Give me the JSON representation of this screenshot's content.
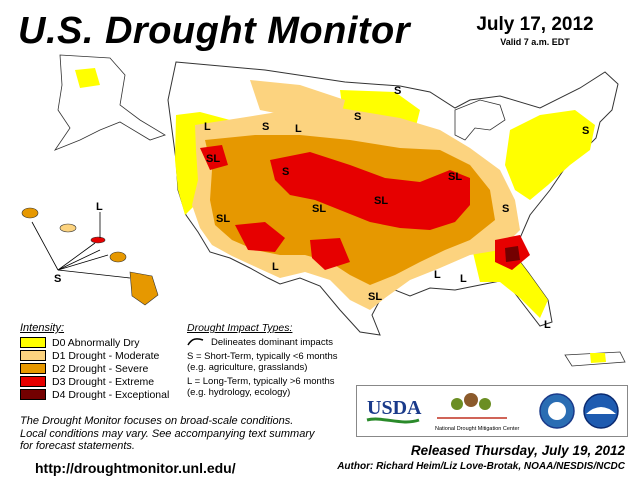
{
  "header": {
    "title": "U.S. Drought Monitor",
    "date": "July 17, 2012",
    "valid": "Valid 7 a.m. EDT"
  },
  "legend": {
    "title": "Intensity:",
    "items": [
      {
        "label": "D0 Abnormally Dry",
        "color": "#ffff00"
      },
      {
        "label": "D1 Drought - Moderate",
        "color": "#fcd37f"
      },
      {
        "label": "D2 Drought - Severe",
        "color": "#e69800"
      },
      {
        "label": "D3 Drought - Extreme",
        "color": "#e60000"
      },
      {
        "label": "D4 Drought - Exceptional",
        "color": "#730000"
      }
    ]
  },
  "impact": {
    "title": "Drought Impact Types:",
    "delineates": "Delineates dominant impacts",
    "short_term_1": "S = Short-Term, typically <6 months",
    "short_term_2": "(e.g. agriculture, grasslands)",
    "long_term_1": "L = Long-Term, typically >6 months",
    "long_term_2": "(e.g. hydrology, ecology)"
  },
  "disclaimer": {
    "line1": "The Drought Monitor focuses on broad-scale conditions.",
    "line2": "Local conditions may vary. See accompanying text summary",
    "line3": "for forecast statements."
  },
  "footer": {
    "url": "http://droughtmonitor.unl.edu/",
    "released": "Released Thursday, July 19, 2012",
    "author": "Author: Richard Heim/Liz Love-Brotak, NOAA/NESDIS/NCDC"
  },
  "logos": {
    "usda": "USDA",
    "ndmc": "National Drought Mitigation Center",
    "noaa": "NOAA"
  },
  "map_labels": {
    "s": "S",
    "l": "L",
    "sl": "SL"
  }
}
